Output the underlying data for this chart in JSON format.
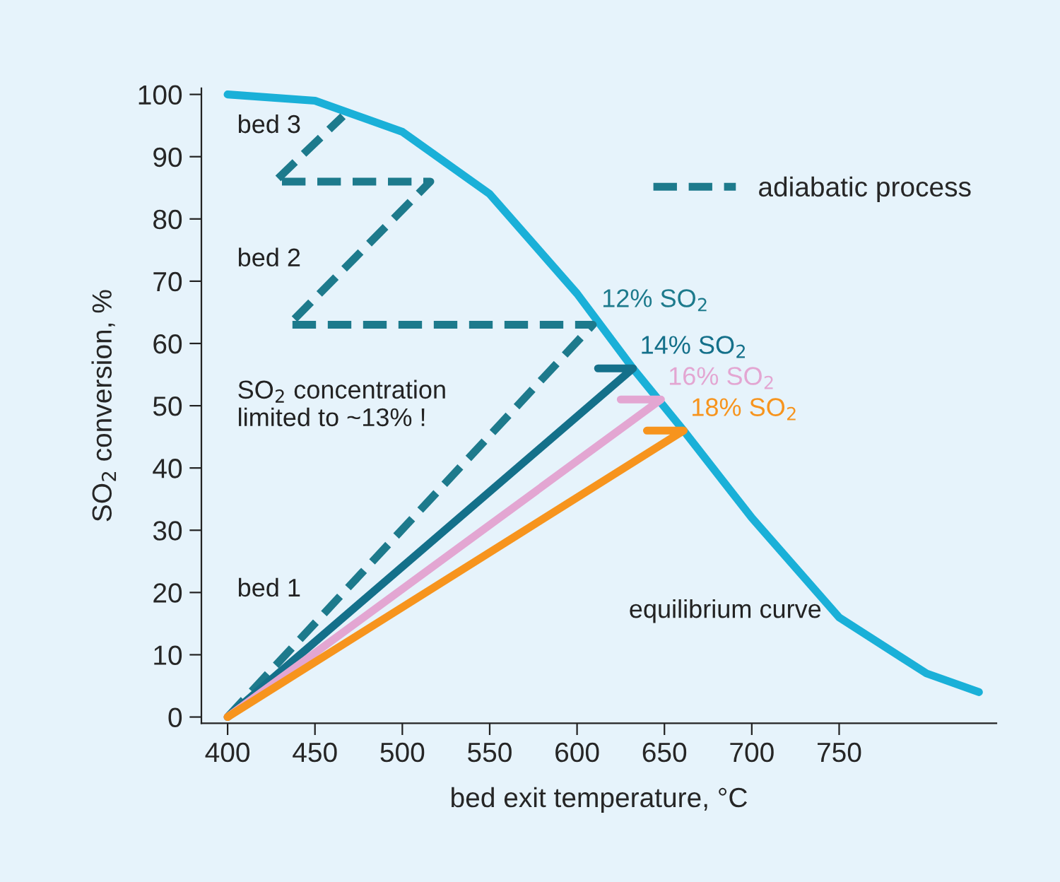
{
  "chart_data": {
    "type": "line",
    "xlabel": "bed exit temperature, °C",
    "ylabel": "SO$_{2}$ conversion, %",
    "xlim": [
      385,
      840
    ],
    "ylim": [
      -1,
      101
    ],
    "xticks": [
      400,
      450,
      500,
      550,
      600,
      650,
      700,
      750
    ],
    "yticks": [
      0,
      10,
      20,
      30,
      40,
      50,
      60,
      70,
      80,
      90,
      100
    ],
    "grid": false,
    "legend": "top right",
    "series": [
      {
        "name": "equilibrium curve",
        "color": "#1ab0d8",
        "x": [
          400,
          450,
          500,
          550,
          600,
          632,
          661,
          700,
          750,
          800,
          830
        ],
        "values": [
          100,
          99,
          94,
          84,
          68,
          56,
          46,
          32,
          16,
          7,
          4
        ],
        "line_style": "solid"
      },
      {
        "name": "adiabatic process",
        "color": "#1d7a8c",
        "x": [
          400,
          609,
          435,
          516,
          427,
          466
        ],
        "values": [
          0,
          63,
          63,
          86,
          86,
          96.5
        ],
        "line_style": "dashed"
      },
      {
        "name": "14% SO$_{2}$",
        "color": "#14708a",
        "x": [
          400,
          632,
          612
        ],
        "values": [
          0,
          56,
          56
        ],
        "line_style": "solid"
      },
      {
        "name": "16% SO$_{2}$",
        "color": "#e3a6d2",
        "x": [
          400,
          648,
          625
        ],
        "values": [
          0,
          51,
          51
        ],
        "line_style": "solid"
      },
      {
        "name": "18% SO$_{2}$",
        "color": "#f7941d",
        "x": [
          400,
          661,
          640
        ],
        "values": [
          0,
          46,
          46
        ],
        "line_style": "solid"
      }
    ],
    "annotations": [
      {
        "text": "12% SO$_{2}$",
        "x": 609,
        "y": 63
      },
      "bed 3",
      "bed 2",
      "bed 1",
      "SO$_{2}$ concentration\nlimited to ~13% !"
    ]
  }
}
